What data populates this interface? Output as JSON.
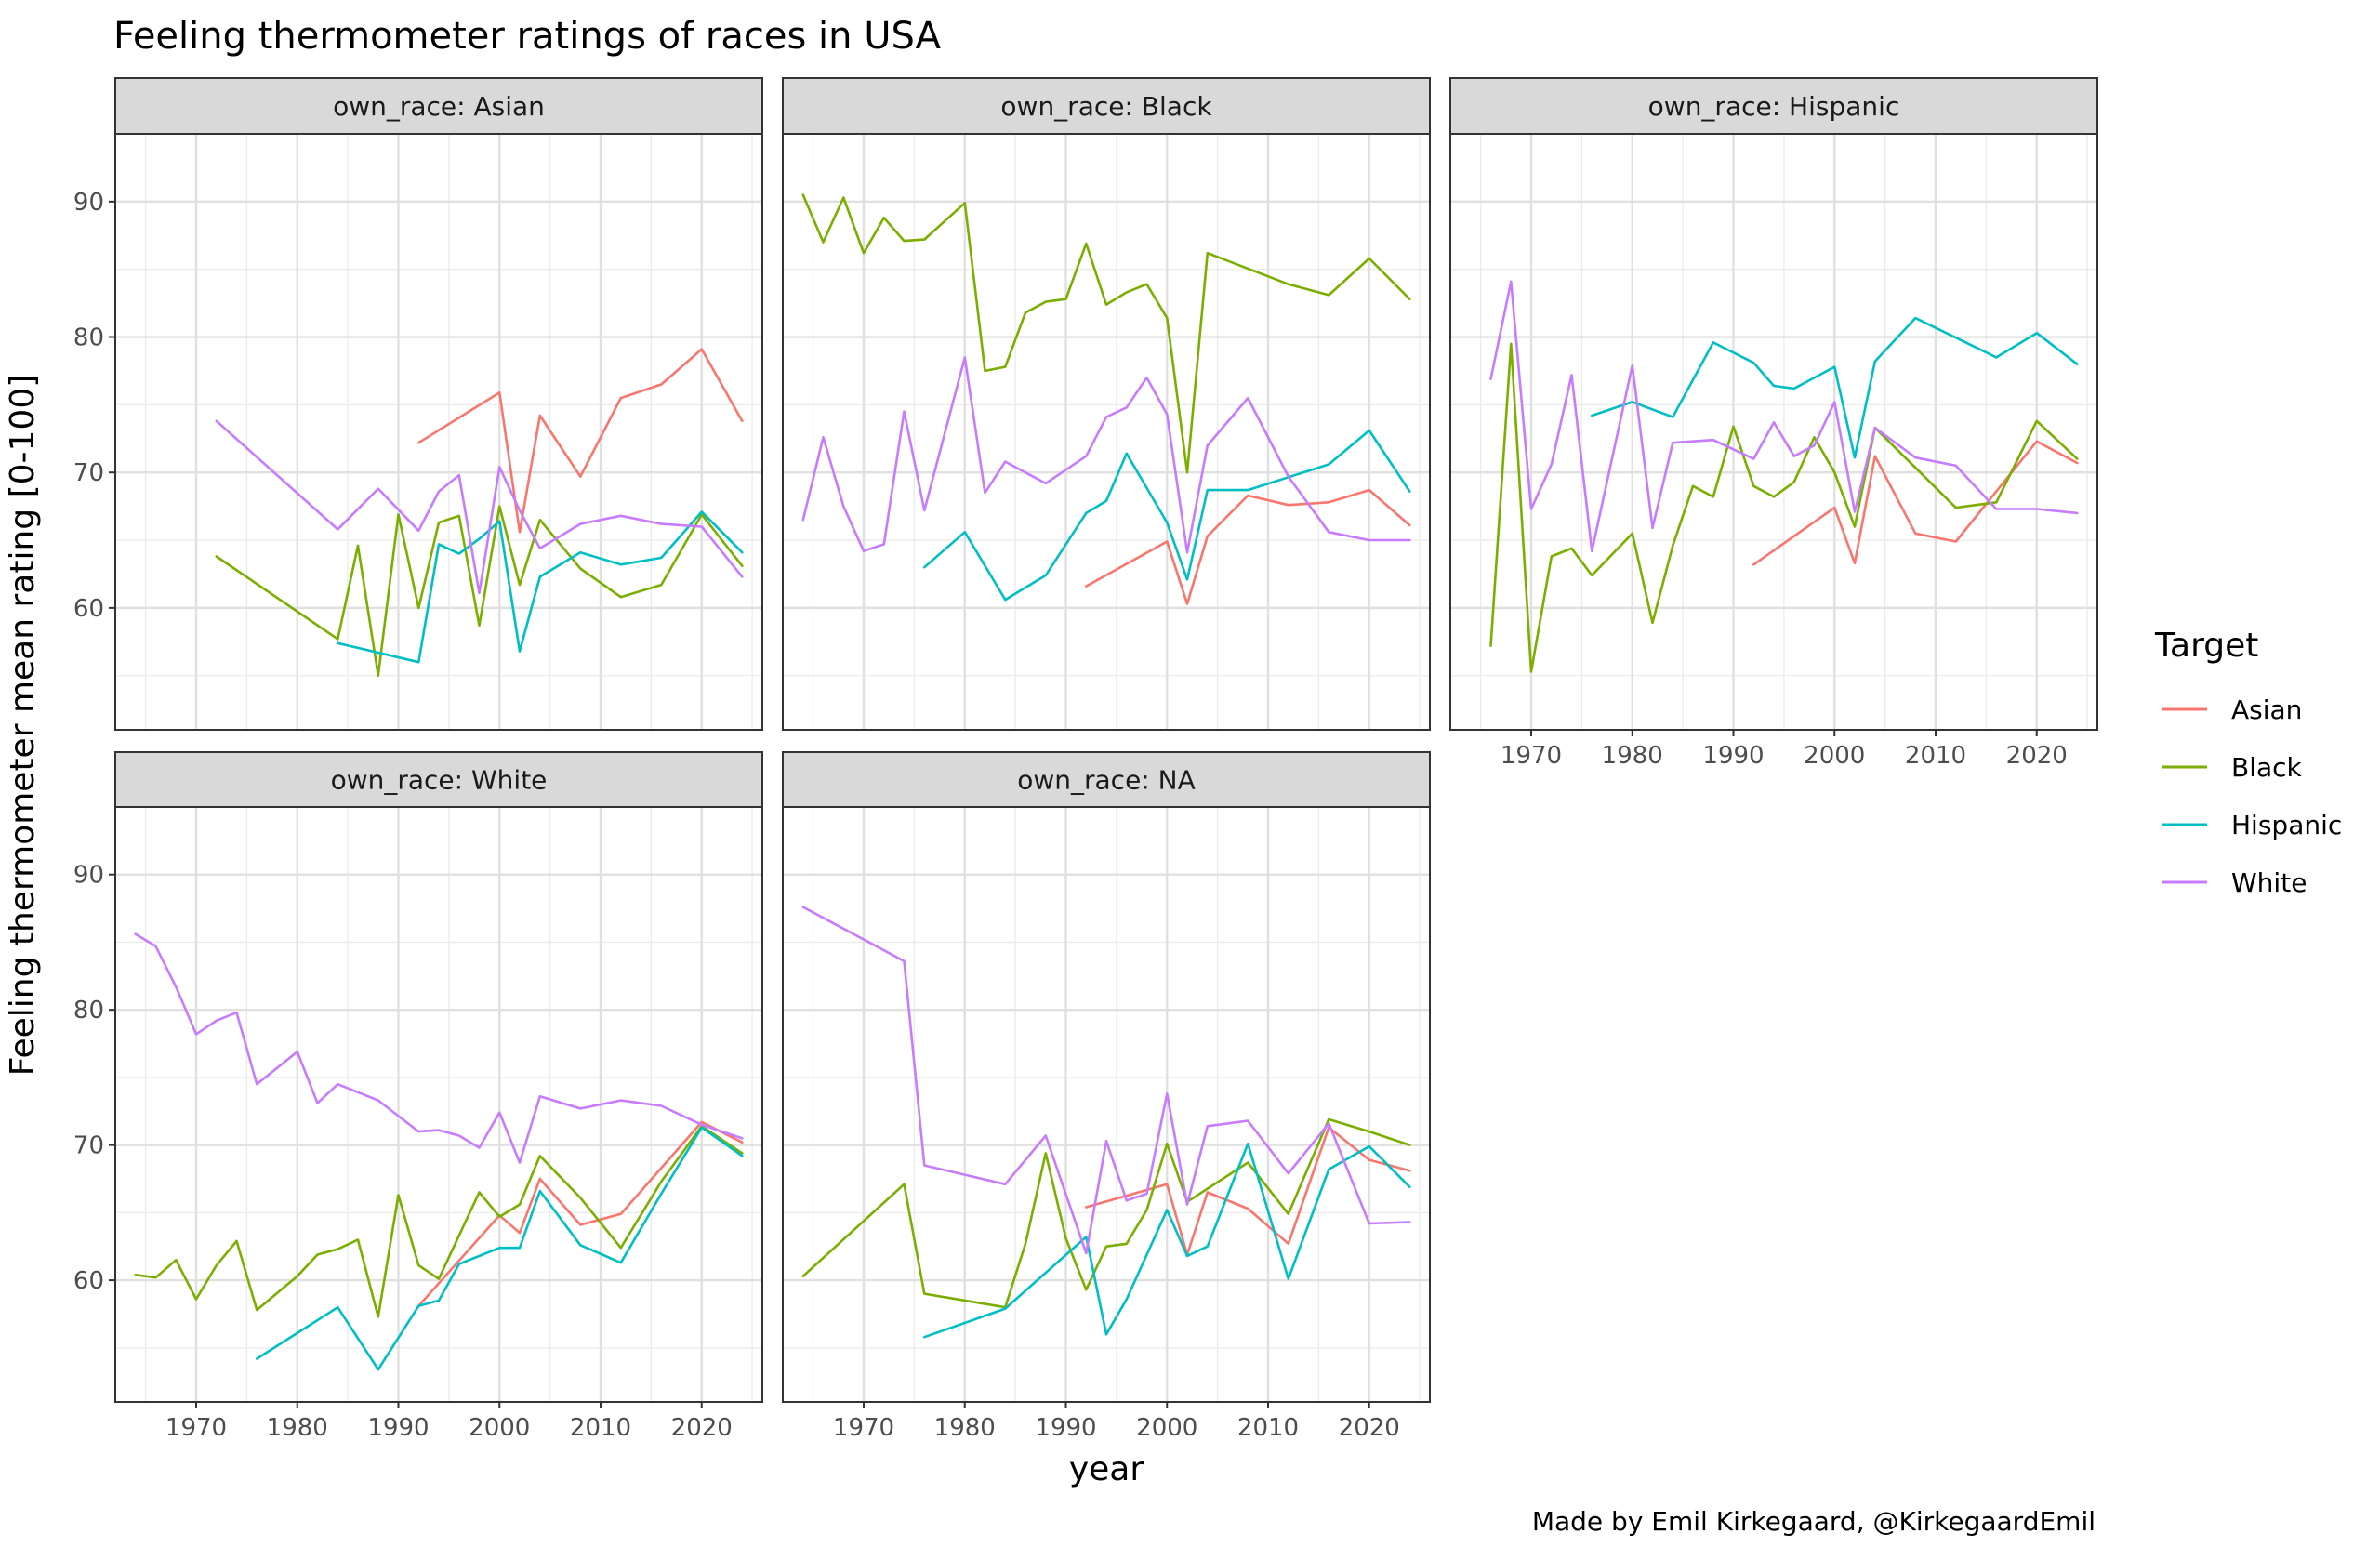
{
  "title": "Feeling thermometer ratings of races in USA",
  "caption": "Made by Emil Kirkegaard, @KirkegaardEmil",
  "legend": {
    "title": "Target",
    "items": [
      {
        "label": "Asian",
        "color": "#F8766D"
      },
      {
        "label": "Black",
        "color": "#7CAE00"
      },
      {
        "label": "Hispanic",
        "color": "#00BFC4"
      },
      {
        "label": "White",
        "color": "#C77CFF"
      }
    ]
  },
  "chart_data": {
    "type": "line",
    "title": "Feeling thermometer ratings of races in USA",
    "xlabel": "year",
    "ylabel": "Feeling thermometer mean rating [0-100]",
    "xlim": [
      1962,
      2026
    ],
    "ylim": [
      51,
      95
    ],
    "x_ticks": [
      1970,
      1980,
      1990,
      2000,
      2010,
      2020
    ],
    "y_ticks": [
      60,
      70,
      80,
      90
    ],
    "grid": true,
    "legend_position": "right",
    "panels": [
      {
        "strip": "own_race: Asian",
        "series": [
          {
            "name": "Asian",
            "x": [
              1992,
              2000,
              2002,
              2004,
              2008,
              2012,
              2016,
              2020,
              2024
            ],
            "y": [
              72.2,
              75.9,
              65.6,
              74.2,
              69.7,
              75.5,
              76.5,
              79.1,
              73.8
            ]
          },
          {
            "name": "Black",
            "x": [
              1972,
              1984,
              1986,
              1988,
              1990,
              1992,
              1994,
              1996,
              1998,
              2000,
              2002,
              2004,
              2008,
              2012,
              2016,
              2020,
              2024
            ],
            "y": [
              63.8,
              57.7,
              64.6,
              55.0,
              66.9,
              60.0,
              66.3,
              66.8,
              58.7,
              67.5,
              61.7,
              66.5,
              62.9,
              60.8,
              61.7,
              66.9,
              63.1
            ]
          },
          {
            "name": "Hispanic",
            "x": [
              1984,
              1992,
              1994,
              1996,
              1998,
              2000,
              2002,
              2004,
              2008,
              2012,
              2016,
              2020,
              2024
            ],
            "y": [
              57.4,
              56.0,
              64.7,
              64.0,
              65.1,
              66.4,
              56.8,
              62.3,
              64.1,
              63.2,
              63.7,
              67.1,
              64.1
            ]
          },
          {
            "name": "White",
            "x": [
              1972,
              1984,
              1988,
              1992,
              1994,
              1996,
              1998,
              2000,
              2002,
              2004,
              2008,
              2012,
              2016,
              2020,
              2024
            ],
            "y": [
              73.8,
              65.8,
              68.8,
              65.7,
              68.6,
              69.8,
              61.1,
              70.4,
              67.2,
              64.4,
              66.2,
              66.8,
              66.2,
              66.0,
              62.3
            ]
          }
        ]
      },
      {
        "strip": "own_race: Black",
        "series": [
          {
            "name": "Asian",
            "x": [
              1992,
              2000,
              2002,
              2004,
              2008,
              2012,
              2016,
              2020,
              2024
            ],
            "y": [
              61.6,
              64.9,
              60.3,
              65.3,
              68.3,
              67.6,
              67.8,
              68.7,
              66.1
            ]
          },
          {
            "name": "Black",
            "x": [
              1964,
              1966,
              1968,
              1970,
              1972,
              1974,
              1976,
              1980,
              1982,
              1984,
              1986,
              1988,
              1990,
              1992,
              1994,
              1996,
              1998,
              2000,
              2002,
              2004,
              2012,
              2016,
              2020,
              2024
            ],
            "y": [
              90.5,
              87.0,
              90.3,
              86.2,
              88.8,
              87.1,
              87.2,
              89.9,
              77.5,
              77.8,
              81.8,
              82.6,
              82.8,
              86.9,
              82.4,
              83.3,
              83.9,
              81.4,
              70.0,
              86.2,
              83.9,
              83.1,
              85.8,
              82.8
            ]
          },
          {
            "name": "Hispanic",
            "x": [
              1976,
              1980,
              1984,
              1988,
              1992,
              1994,
              1996,
              2000,
              2002,
              2004,
              2008,
              2016,
              2020,
              2024
            ],
            "y": [
              63.0,
              65.6,
              60.6,
              62.4,
              67.0,
              67.9,
              71.4,
              66.3,
              62.1,
              68.7,
              68.7,
              70.6,
              73.1,
              68.6
            ]
          },
          {
            "name": "White",
            "x": [
              1964,
              1966,
              1968,
              1970,
              1972,
              1974,
              1976,
              1980,
              1982,
              1984,
              1988,
              1992,
              1994,
              1996,
              1998,
              2000,
              2002,
              2004,
              2008,
              2012,
              2016,
              2020,
              2024
            ],
            "y": [
              66.5,
              72.6,
              67.5,
              64.2,
              64.7,
              74.5,
              67.2,
              78.5,
              68.5,
              70.8,
              69.2,
              71.2,
              74.1,
              74.8,
              77.0,
              74.3,
              64.1,
              72.0,
              75.5,
              69.7,
              65.6,
              65.0,
              65.0
            ]
          }
        ]
      },
      {
        "strip": "own_race: Hispanic",
        "series": [
          {
            "name": "Asian",
            "x": [
              1992,
              2000,
              2002,
              2004,
              2008,
              2012,
              2016,
              2020,
              2024
            ],
            "y": [
              63.2,
              67.4,
              63.3,
              71.2,
              65.5,
              64.9,
              68.6,
              72.3,
              70.7
            ]
          },
          {
            "name": "Black",
            "x": [
              1966,
              1968,
              1970,
              1972,
              1974,
              1976,
              1980,
              1982,
              1984,
              1986,
              1988,
              1990,
              1992,
              1994,
              1996,
              1998,
              2000,
              2002,
              2004,
              2012,
              2016,
              2020,
              2024
            ],
            "y": [
              57.2,
              79.5,
              55.3,
              63.8,
              64.4,
              62.4,
              65.5,
              58.9,
              64.6,
              69.0,
              68.2,
              73.4,
              69.0,
              68.2,
              69.3,
              72.6,
              70.0,
              66.0,
              73.3,
              67.4,
              67.8,
              73.8,
              71.0
            ]
          },
          {
            "name": "Hispanic",
            "x": [
              1976,
              1980,
              1984,
              1988,
              1992,
              1994,
              1996,
              2000,
              2002,
              2004,
              2008,
              2016,
              2020,
              2024
            ],
            "y": [
              74.2,
              75.2,
              74.1,
              79.6,
              78.1,
              76.4,
              76.2,
              77.8,
              71.1,
              78.2,
              81.4,
              78.5,
              80.3,
              78.0
            ]
          },
          {
            "name": "White",
            "x": [
              1966,
              1968,
              1970,
              1972,
              1974,
              1976,
              1980,
              1982,
              1984,
              1988,
              1992,
              1994,
              1996,
              1998,
              2000,
              2002,
              2004,
              2008,
              2012,
              2016,
              2020,
              2024
            ],
            "y": [
              76.9,
              84.1,
              67.3,
              70.6,
              77.2,
              64.2,
              77.9,
              65.9,
              72.2,
              72.4,
              71.0,
              73.7,
              71.2,
              72.0,
              75.2,
              67.1,
              73.3,
              71.1,
              70.5,
              67.3,
              67.3,
              67.0
            ]
          }
        ]
      },
      {
        "strip": "own_race: White",
        "series": [
          {
            "name": "Asian",
            "x": [
              1992,
              2000,
              2002,
              2004,
              2008,
              2012,
              2016,
              2020,
              2024
            ],
            "y": [
              58.1,
              64.8,
              63.5,
              67.5,
              64.1,
              64.9,
              68.3,
              71.7,
              70.2
            ]
          },
          {
            "name": "Black",
            "x": [
              1964,
              1966,
              1968,
              1970,
              1972,
              1974,
              1976,
              1980,
              1982,
              1984,
              1986,
              1988,
              1990,
              1992,
              1994,
              1998,
              2000,
              2002,
              2004,
              2008,
              2012,
              2016,
              2020,
              2024
            ],
            "y": [
              60.4,
              60.2,
              61.5,
              58.6,
              61.1,
              62.9,
              57.8,
              60.3,
              61.9,
              62.3,
              63.0,
              57.3,
              66.3,
              61.1,
              60.1,
              66.5,
              64.7,
              65.6,
              69.2,
              66.1,
              62.4,
              67.3,
              71.4,
              69.4
            ]
          },
          {
            "name": "Hispanic",
            "x": [
              1976,
              1984,
              1988,
              1992,
              1994,
              1996,
              2000,
              2002,
              2004,
              2008,
              2012,
              2016,
              2020,
              2024
            ],
            "y": [
              54.2,
              58.0,
              53.4,
              58.1,
              58.5,
              61.2,
              62.4,
              62.4,
              66.6,
              62.6,
              61.3,
              66.4,
              71.3,
              69.2
            ]
          },
          {
            "name": "White",
            "x": [
              1964,
              1966,
              1968,
              1970,
              1972,
              1974,
              1976,
              1980,
              1982,
              1984,
              1988,
              1992,
              1994,
              1996,
              1998,
              2000,
              2002,
              2004,
              2008,
              2012,
              2016,
              2020,
              2024
            ],
            "y": [
              85.6,
              84.7,
              81.7,
              78.2,
              79.2,
              79.8,
              74.5,
              76.9,
              73.1,
              74.5,
              73.3,
              71.0,
              71.1,
              70.7,
              69.8,
              72.4,
              68.7,
              73.6,
              72.7,
              73.3,
              72.9,
              71.5,
              70.5
            ]
          }
        ]
      },
      {
        "strip": "own_race: NA",
        "series": [
          {
            "name": "Asian",
            "x": [
              1992,
              2000,
              2002,
              2004,
              2008,
              2012,
              2016,
              2020,
              2024
            ],
            "y": [
              65.4,
              67.1,
              61.9,
              66.5,
              65.3,
              62.7,
              71.3,
              68.9,
              68.1
            ]
          },
          {
            "name": "Black",
            "x": [
              1964,
              1974,
              1976,
              1984,
              1986,
              1988,
              1990,
              1992,
              1994,
              1996,
              1998,
              2000,
              2002,
              2008,
              2012,
              2016,
              2020,
              2024
            ],
            "y": [
              60.3,
              67.1,
              59.0,
              58.0,
              62.7,
              69.4,
              63.1,
              59.3,
              62.5,
              62.7,
              65.2,
              70.1,
              65.8,
              68.7,
              64.9,
              71.9,
              71.0,
              70.0
            ]
          },
          {
            "name": "Hispanic",
            "x": [
              1976,
              1984,
              1992,
              1994,
              1996,
              2000,
              2002,
              2004,
              2008,
              2012,
              2016,
              2020,
              2024
            ],
            "y": [
              55.8,
              57.9,
              63.2,
              56.0,
              58.6,
              65.2,
              61.8,
              62.5,
              70.1,
              60.1,
              68.2,
              69.9,
              66.9
            ]
          },
          {
            "name": "White",
            "x": [
              1964,
              1974,
              1976,
              1984,
              1988,
              1992,
              1994,
              1996,
              1998,
              2000,
              2002,
              2004,
              2008,
              2012,
              2016,
              2020,
              2024
            ],
            "y": [
              87.6,
              83.6,
              68.5,
              67.1,
              70.7,
              62.0,
              70.3,
              65.9,
              66.4,
              73.8,
              65.6,
              71.4,
              71.8,
              67.9,
              71.6,
              64.2,
              64.3
            ]
          }
        ]
      }
    ]
  }
}
